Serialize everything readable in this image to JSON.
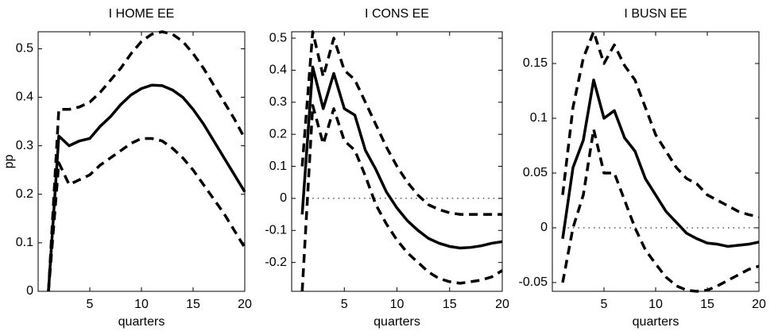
{
  "chart_data": [
    {
      "type": "line",
      "title": "I HOME EE",
      "x_label": "quarters",
      "y_label": "pp",
      "x": [
        1,
        2,
        3,
        4,
        5,
        6,
        7,
        8,
        9,
        10,
        11,
        12,
        13,
        14,
        15,
        16,
        17,
        18,
        19,
        20
      ],
      "xlim": [
        0,
        20
      ],
      "xticks": [
        5,
        10,
        15,
        20
      ],
      "ylim": [
        0,
        0.535
      ],
      "yticks": [
        0,
        0.1,
        0.2,
        0.3,
        0.4,
        0.5
      ],
      "zero_line": false,
      "series": [
        {
          "color": "#000000",
          "style": "solid",
          "values": [
            0,
            0.32,
            0.3,
            0.31,
            0.315,
            0.34,
            0.36,
            0.385,
            0.405,
            0.418,
            0.425,
            0.424,
            0.415,
            0.4,
            0.375,
            0.345,
            0.31,
            0.275,
            0.24,
            0.205
          ]
        },
        {
          "color": "#000000",
          "style": "dashed",
          "values": [
            0,
            0.375,
            0.375,
            0.38,
            0.39,
            0.41,
            0.435,
            0.46,
            0.49,
            0.515,
            0.53,
            0.535,
            0.53,
            0.515,
            0.49,
            0.46,
            0.425,
            0.39,
            0.355,
            0.315
          ]
        },
        {
          "color": "#000000",
          "style": "dashed",
          "values": [
            0,
            0.265,
            0.22,
            0.23,
            0.24,
            0.26,
            0.275,
            0.29,
            0.305,
            0.315,
            0.315,
            0.31,
            0.295,
            0.275,
            0.25,
            0.22,
            0.19,
            0.16,
            0.125,
            0.09
          ]
        }
      ]
    },
    {
      "type": "line",
      "title": "I CONS EE",
      "x_label": "quarters",
      "x": [
        1,
        2,
        3,
        4,
        5,
        6,
        7,
        8,
        9,
        10,
        11,
        12,
        13,
        14,
        15,
        16,
        17,
        18,
        19,
        20
      ],
      "xlim": [
        0,
        20
      ],
      "xticks": [
        5,
        10,
        15,
        20
      ],
      "ylim": [
        -0.29,
        0.52
      ],
      "yticks": [
        -0.2,
        -0.1,
        0,
        0.1,
        0.2,
        0.3,
        0.4,
        0.5
      ],
      "zero_line": true,
      "series": [
        {
          "color": "#000000",
          "style": "solid",
          "values": [
            -0.05,
            0.41,
            0.28,
            0.39,
            0.28,
            0.26,
            0.15,
            0.09,
            0.02,
            -0.03,
            -0.07,
            -0.1,
            -0.125,
            -0.14,
            -0.15,
            -0.155,
            -0.153,
            -0.148,
            -0.14,
            -0.135
          ]
        },
        {
          "color": "#000000",
          "style": "dashed",
          "values": [
            0.1,
            0.52,
            0.38,
            0.5,
            0.4,
            0.37,
            0.3,
            0.23,
            0.16,
            0.1,
            0.05,
            0.01,
            -0.02,
            -0.035,
            -0.045,
            -0.05,
            -0.05,
            -0.05,
            -0.05,
            -0.05
          ]
        },
        {
          "color": "#000000",
          "style": "dashed",
          "values": [
            -0.29,
            0.29,
            0.17,
            0.28,
            0.18,
            0.15,
            0.07,
            -0.02,
            -0.08,
            -0.13,
            -0.17,
            -0.2,
            -0.23,
            -0.25,
            -0.26,
            -0.265,
            -0.26,
            -0.255,
            -0.245,
            -0.225
          ]
        }
      ]
    },
    {
      "type": "line",
      "title": "I BUSN EE",
      "x_label": "quarters",
      "x": [
        1,
        2,
        3,
        4,
        5,
        6,
        7,
        8,
        9,
        10,
        11,
        12,
        13,
        14,
        15,
        16,
        17,
        18,
        19,
        20
      ],
      "xlim": [
        0,
        20
      ],
      "xticks": [
        5,
        10,
        15,
        20
      ],
      "ylim": [
        -0.058,
        0.179
      ],
      "yticks": [
        -0.05,
        0,
        0.05,
        0.1,
        0.15
      ],
      "zero_line": true,
      "series": [
        {
          "color": "#000000",
          "style": "solid",
          "values": [
            -0.01,
            0.055,
            0.08,
            0.135,
            0.1,
            0.107,
            0.082,
            0.07,
            0.045,
            0.03,
            0.015,
            0.005,
            -0.005,
            -0.01,
            -0.014,
            -0.015,
            -0.017,
            -0.016,
            -0.015,
            -0.013
          ]
        },
        {
          "color": "#000000",
          "style": "dashed",
          "values": [
            0.03,
            0.11,
            0.155,
            0.179,
            0.15,
            0.167,
            0.148,
            0.135,
            0.11,
            0.085,
            0.07,
            0.055,
            0.045,
            0.04,
            0.03,
            0.025,
            0.02,
            0.015,
            0.012,
            0.01
          ]
        },
        {
          "color": "#000000",
          "style": "dashed",
          "values": [
            -0.05,
            0,
            0.03,
            0.09,
            0.05,
            0.05,
            0.025,
            0,
            -0.02,
            -0.033,
            -0.045,
            -0.053,
            -0.057,
            -0.058,
            -0.057,
            -0.053,
            -0.048,
            -0.043,
            -0.038,
            -0.035
          ]
        }
      ]
    }
  ]
}
